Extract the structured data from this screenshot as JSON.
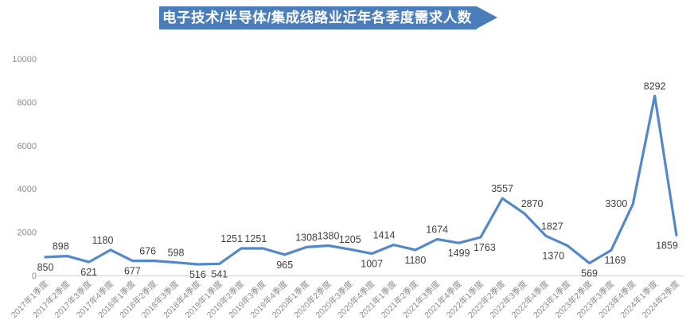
{
  "header": {
    "title": "电子技术/半导体/集成线路业近年各季度需求人数"
  },
  "colors": {
    "banner": "#4a7dba",
    "line": "#5388c9",
    "data_label": "#404040",
    "tick_label": "#8c8c8c",
    "axis_line": "#cfcfcf",
    "background": "#ffffff"
  },
  "chart_data": {
    "type": "line",
    "title": "电子技术/半导体/集成线路业近年各季度需求人数",
    "categories": [
      "2017年1季度",
      "2017年2季度",
      "2017年3季度",
      "2017年4季度",
      "2018年1季度",
      "2018年2季度",
      "2018年3季度",
      "2018年4季度",
      "2019年1季度",
      "2019年2季度",
      "2019年3季度",
      "2019年4季度",
      "2020年1季度",
      "2020年2季度",
      "2020年3季度",
      "2020年4季度",
      "2021年1季度",
      "2021年2季度",
      "2021年3季度",
      "2021年4季度",
      "2022年1季度",
      "2022年2季度",
      "2022年3季度",
      "2022年4季度",
      "2023年1季度",
      "2023年2季度",
      "2023年3季度",
      "2023年4季度",
      "2024年1季度",
      "2024年2季度"
    ],
    "values": [
      850,
      898,
      621,
      1180,
      677,
      676,
      598,
      516,
      541,
      1251,
      1251,
      965,
      1308,
      1380,
      1205,
      1007,
      1414,
      1180,
      1674,
      1499,
      1763,
      3557,
      2870,
      1827,
      1370,
      569,
      1169,
      3300,
      8292,
      1859
    ],
    "data_labels_visible": true,
    "data_label_positions": [
      "below",
      "above",
      "below",
      "above",
      "below",
      "above",
      "above",
      "below",
      "below",
      "above",
      "above",
      "below",
      "above",
      "above",
      "above",
      "below",
      "above",
      "below",
      "above",
      "below",
      "below",
      "above",
      "above",
      "above",
      "below",
      "below",
      "below",
      "left",
      "above",
      "below"
    ],
    "data_label_dx": [
      0,
      -8,
      0,
      -10,
      0,
      -8,
      0,
      0,
      0,
      -12,
      -9,
      0,
      0,
      0,
      0,
      0,
      -12,
      0,
      0,
      0,
      5,
      0,
      10,
      8,
      -18,
      0,
      5,
      0,
      0,
      -12
    ],
    "xlabel": "",
    "ylabel": "",
    "ylim": [
      0,
      10000
    ],
    "yticks": [
      0,
      2000,
      4000,
      6000,
      8000,
      10000
    ],
    "grid": false,
    "legend_position": "none",
    "x_tick_rotation_deg": -45
  }
}
